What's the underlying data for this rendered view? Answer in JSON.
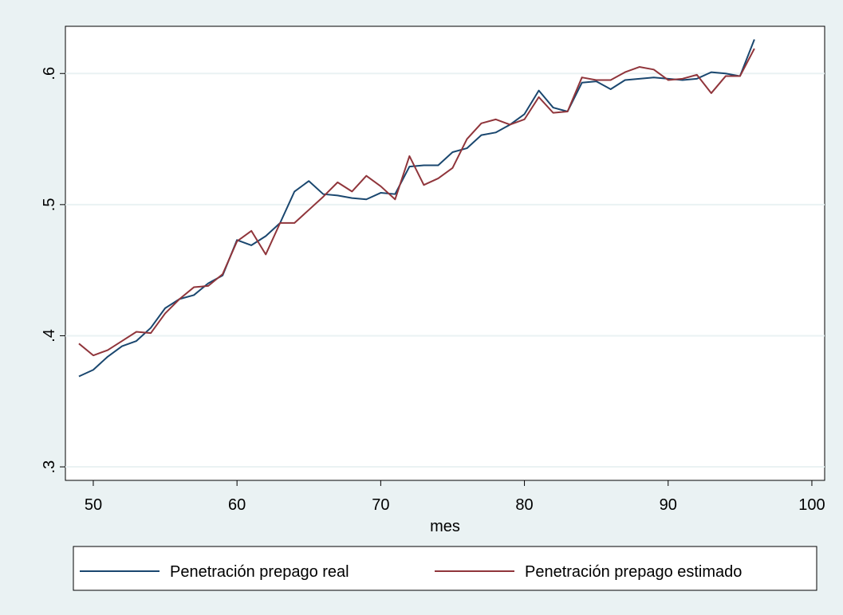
{
  "chart_data": {
    "type": "line",
    "x_label": "mes",
    "x": [
      49,
      50,
      51,
      52,
      53,
      54,
      55,
      56,
      57,
      58,
      59,
      60,
      61,
      62,
      63,
      64,
      65,
      66,
      67,
      68,
      69,
      70,
      71,
      72,
      73,
      74,
      75,
      76,
      77,
      78,
      79,
      80,
      81,
      82,
      83,
      84,
      85,
      86,
      87,
      88,
      89,
      90,
      91,
      92,
      93,
      94,
      95,
      96
    ],
    "series": [
      {
        "name": "Penetración prepago real",
        "color": "#1a476f",
        "values": [
          0.369,
          0.374,
          0.384,
          0.392,
          0.396,
          0.406,
          0.421,
          0.428,
          0.431,
          0.44,
          0.446,
          0.473,
          0.469,
          0.476,
          0.486,
          0.51,
          0.518,
          0.508,
          0.507,
          0.505,
          0.504,
          0.509,
          0.508,
          0.529,
          0.53,
          0.53,
          0.54,
          0.543,
          0.553,
          0.555,
          0.561,
          0.569,
          0.587,
          0.574,
          0.571,
          0.593,
          0.594,
          0.588,
          0.595,
          0.596,
          0.597,
          0.596,
          0.595,
          0.596,
          0.601,
          0.6,
          0.598,
          0.626
        ]
      },
      {
        "name": "Penetración prepago estimado",
        "color": "#90353b",
        "values": [
          0.394,
          0.385,
          0.389,
          0.396,
          0.403,
          0.402,
          0.417,
          0.428,
          0.437,
          0.438,
          0.447,
          0.472,
          0.48,
          0.462,
          0.486,
          0.486,
          0.496,
          0.506,
          0.517,
          0.51,
          0.522,
          0.514,
          0.504,
          0.537,
          0.515,
          0.52,
          0.528,
          0.55,
          0.562,
          0.565,
          0.561,
          0.565,
          0.582,
          0.57,
          0.571,
          0.597,
          0.595,
          0.595,
          0.601,
          0.605,
          0.603,
          0.595,
          0.596,
          0.599,
          0.585,
          0.598,
          0.598,
          0.619
        ]
      }
    ],
    "xlim": [
      48.06,
      100.89
    ],
    "xticks": [
      50,
      60,
      70,
      80,
      90,
      100
    ],
    "ylim": [
      0.2897,
      0.636
    ],
    "yticks": [
      {
        "value": 0.3,
        "label": ".3"
      },
      {
        "value": 0.4,
        "label": ".4"
      },
      {
        "value": 0.5,
        "label": ".5"
      },
      {
        "value": 0.6,
        "label": ".6"
      }
    ],
    "grid": true,
    "legend": "bottom"
  }
}
